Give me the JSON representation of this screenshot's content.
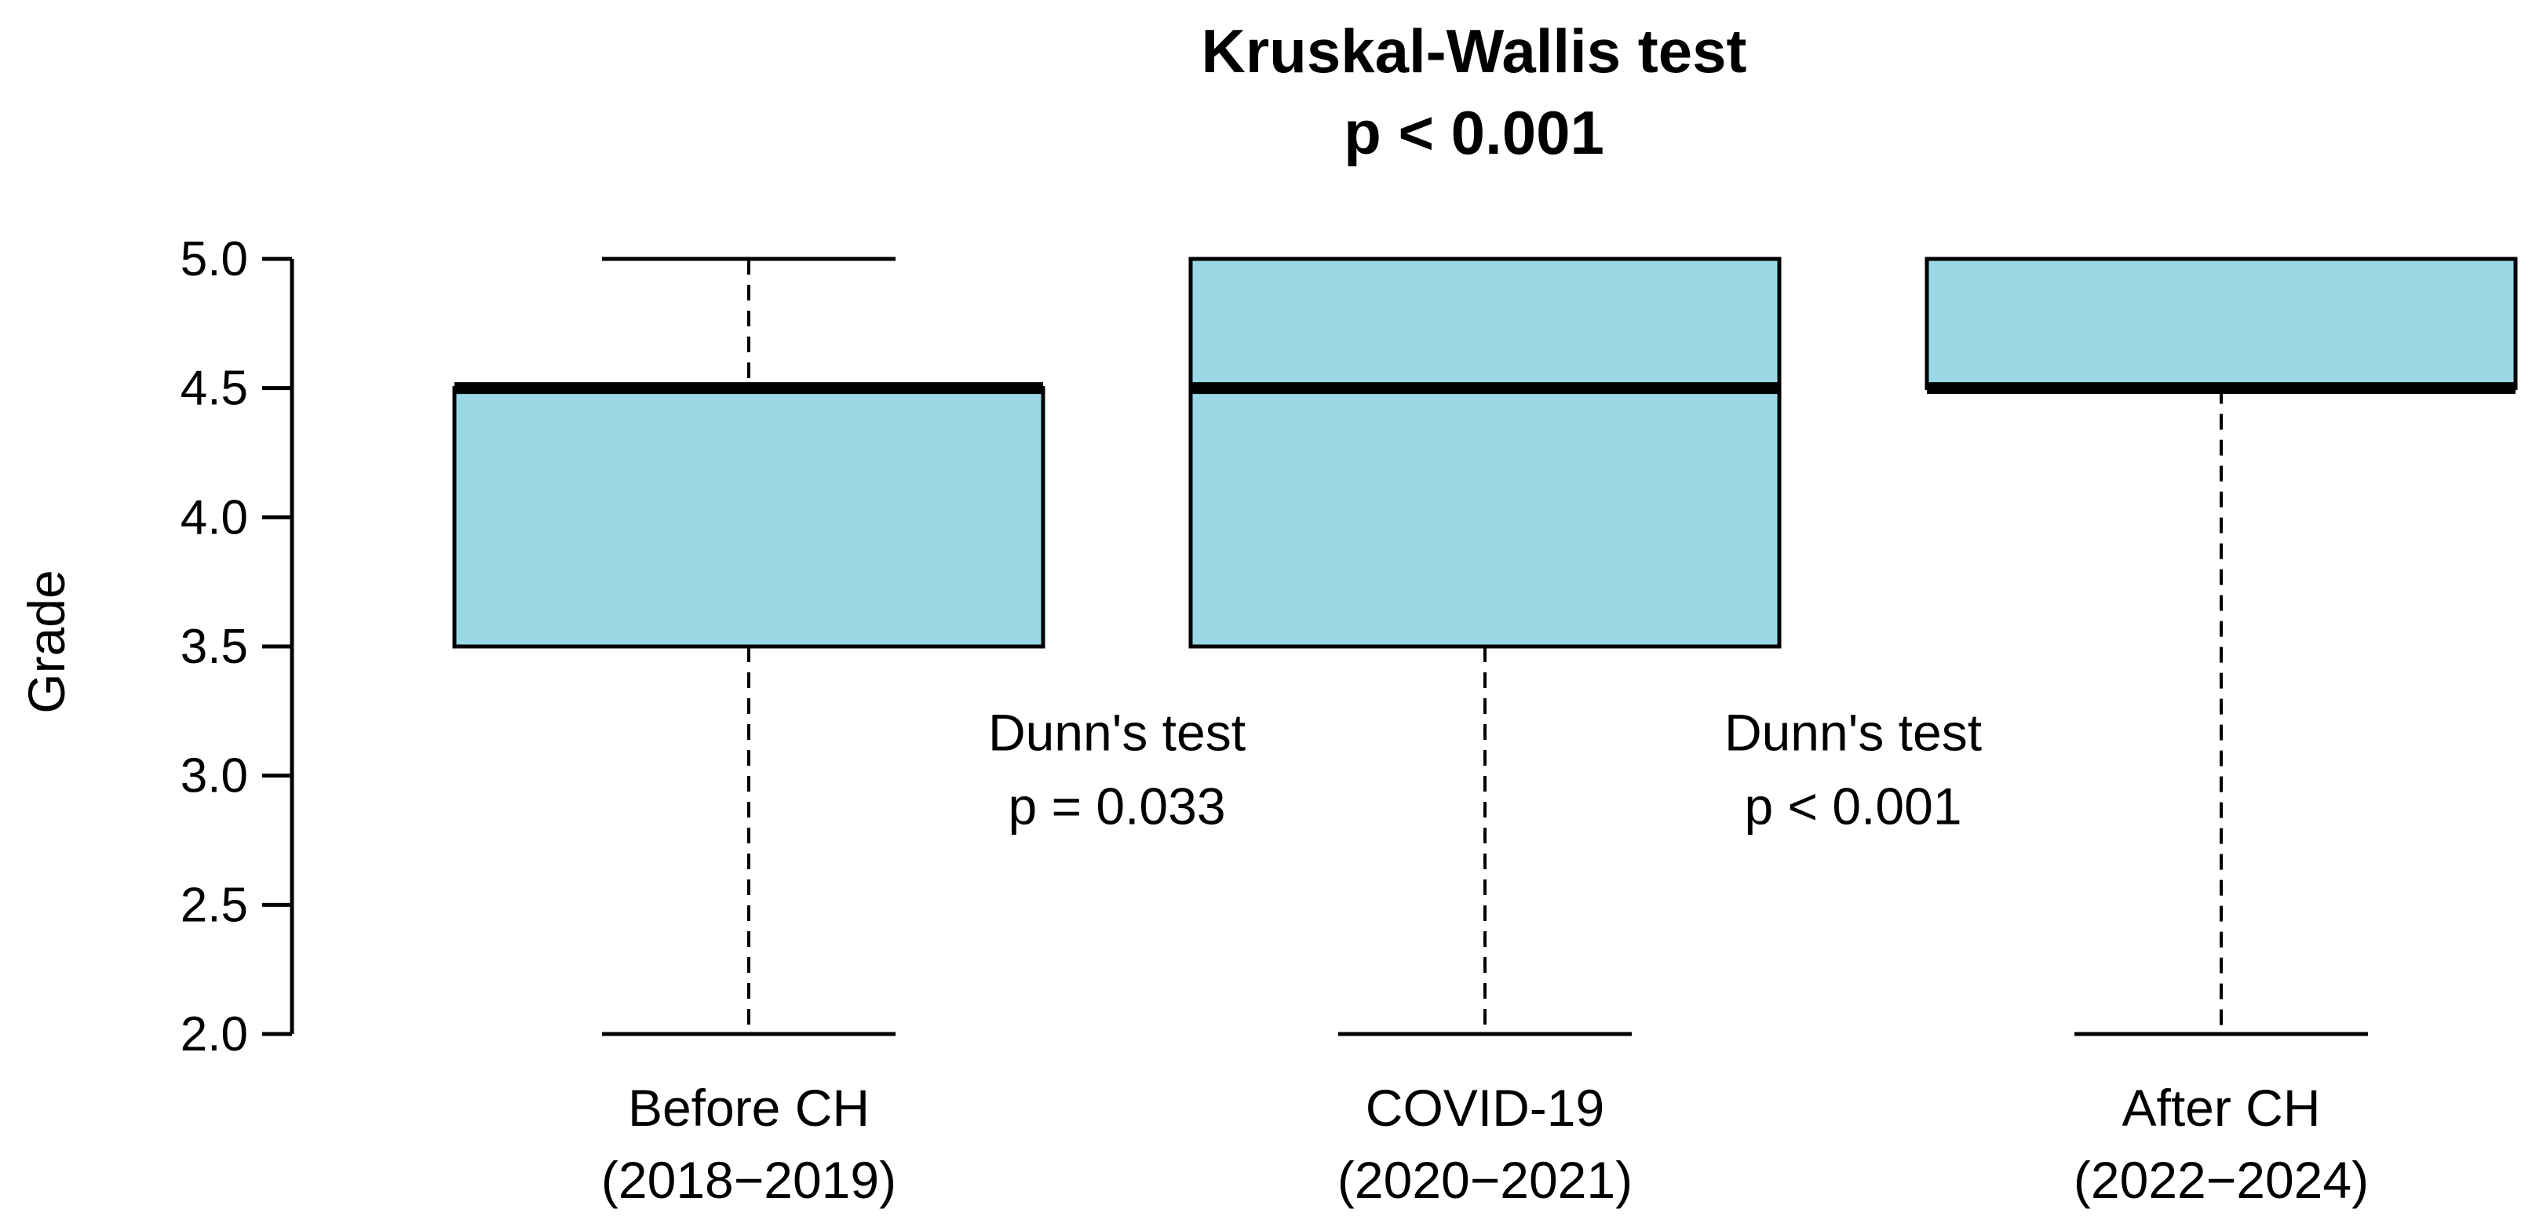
{
  "chart_data": {
    "type": "box",
    "title": [
      "Kruskal-Wallis test",
      "p < 0.001"
    ],
    "xlabel": "",
    "ylabel": "Grade",
    "ylim": [
      2.0,
      5.0
    ],
    "yticks": [
      "5.0",
      "4.5",
      "4.0",
      "3.5",
      "3.0",
      "2.5",
      "2.0"
    ],
    "grid": false,
    "box_color": "#9ad8e6",
    "categories": [
      [
        "Before CH",
        "(2018−2019)"
      ],
      [
        "COVID-19",
        "(2020−2021)"
      ],
      [
        "After CH",
        "(2022−2024)"
      ]
    ],
    "boxes": [
      {
        "min": 2.0,
        "q1": 3.5,
        "median": 4.5,
        "q3": 4.5,
        "max": 5.0
      },
      {
        "min": 2.0,
        "q1": 3.5,
        "median": 4.5,
        "q3": 5.0,
        "max": 5.0
      },
      {
        "min": 2.0,
        "q1": 4.5,
        "median": 4.5,
        "q3": 5.0,
        "max": 5.0
      }
    ],
    "annotations": [
      {
        "lines": [
          "Dunn's test",
          "p = 0.033"
        ],
        "between": [
          0,
          1
        ],
        "y": 3.0
      },
      {
        "lines": [
          "Dunn's test",
          "p < 0.001"
        ],
        "between": [
          1,
          2
        ],
        "y": 3.0
      }
    ]
  }
}
